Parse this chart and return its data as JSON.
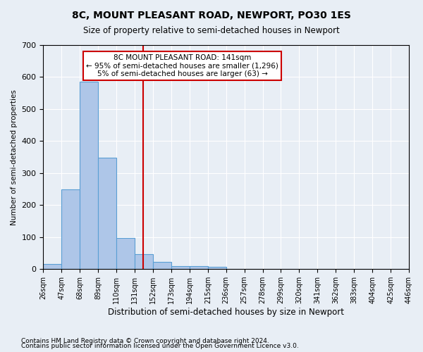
{
  "title": "8C, MOUNT PLEASANT ROAD, NEWPORT, PO30 1ES",
  "subtitle": "Size of property relative to semi-detached houses in Newport",
  "xlabel": "Distribution of semi-detached houses by size in Newport",
  "ylabel": "Number of semi-detached properties",
  "bar_values": [
    15,
    250,
    585,
    348,
    98,
    47,
    22,
    10,
    10,
    7,
    0,
    0,
    0,
    0,
    0,
    0,
    0,
    0,
    0,
    0
  ],
  "categories": [
    "26sqm",
    "47sqm",
    "68sqm",
    "89sqm",
    "110sqm",
    "131sqm",
    "152sqm",
    "173sqm",
    "194sqm",
    "215sqm",
    "236sqm",
    "257sqm",
    "278sqm",
    "299sqm",
    "320sqm",
    "341sqm",
    "362sqm",
    "383sqm",
    "404sqm",
    "425sqm",
    "446sqm"
  ],
  "bar_color": "#aec6e8",
  "bar_edge_color": "#5a9fd4",
  "vline_color": "#cc0000",
  "annotation_text": "8C MOUNT PLEASANT ROAD: 141sqm\n← 95% of semi-detached houses are smaller (1,296)\n5% of semi-detached houses are larger (63) →",
  "annotation_box_color": "#cc0000",
  "ylim": [
    0,
    700
  ],
  "yticks": [
    0,
    100,
    200,
    300,
    400,
    500,
    600,
    700
  ],
  "footnote1": "Contains HM Land Registry data © Crown copyright and database right 2024.",
  "footnote2": "Contains public sector information licensed under the Open Government Licence v3.0.",
  "background_color": "#e8eef5",
  "grid_color": "#ffffff"
}
